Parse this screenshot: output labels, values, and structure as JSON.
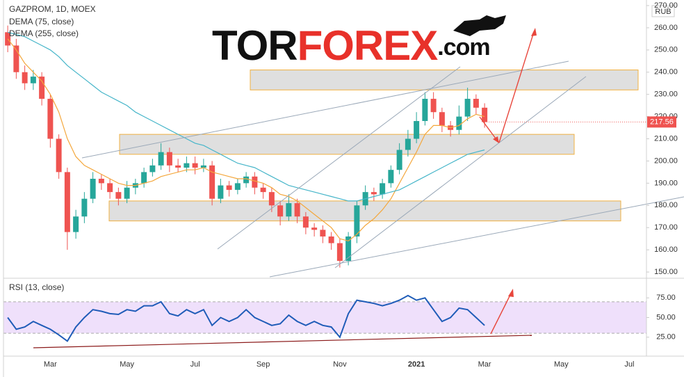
{
  "watermark": [
    "TOR",
    "FOREX",
    ".com"
  ],
  "chart_data": {
    "type": "candlestick",
    "title": "GAZPROM, 1D, MOEX",
    "currency": "RUB",
    "categories": [
      null,
      null,
      null,
      null,
      null,
      "Mar",
      null,
      null,
      null,
      null,
      null,
      null,
      null,
      null,
      "May",
      null,
      null,
      null,
      null,
      null,
      null,
      null,
      "Jul",
      null,
      null,
      null,
      null,
      null,
      null,
      null,
      "Sep",
      null,
      null,
      null,
      null,
      null,
      null,
      null,
      null,
      "Nov",
      null,
      null,
      null,
      null,
      null,
      null,
      null,
      null,
      "2021",
      null,
      null,
      null,
      null,
      null,
      null,
      null,
      "Mar",
      null,
      null,
      null,
      null,
      null,
      null,
      null,
      null,
      "May",
      null,
      null,
      null,
      null,
      null,
      null,
      null,
      "Jul",
      null
    ],
    "open": [
      258,
      252,
      240,
      235,
      238,
      228,
      210,
      195,
      168,
      175,
      183,
      192,
      190,
      186,
      183,
      188,
      190,
      195,
      198,
      204,
      198,
      197,
      199,
      197,
      198,
      183,
      189,
      187,
      190,
      193,
      188,
      186,
      180,
      175,
      181,
      175,
      170,
      169,
      166,
      163,
      155,
      166,
      180,
      186,
      185,
      190,
      196,
      205,
      210,
      218,
      228,
      222,
      216,
      214,
      220,
      228,
      224,
      null,
      null,
      null,
      null,
      null,
      null,
      null,
      null,
      null,
      null,
      null,
      null,
      null,
      null,
      null,
      null,
      null,
      null
    ],
    "high": [
      261,
      255,
      243,
      241,
      240,
      230,
      212,
      197,
      178,
      186,
      195,
      194,
      192,
      188,
      191,
      192,
      197,
      201,
      208,
      206,
      201,
      202,
      202,
      201,
      200,
      192,
      191,
      192,
      195,
      195,
      190,
      188,
      182,
      185,
      183,
      177,
      172,
      171,
      168,
      165,
      168,
      182,
      189,
      188,
      192,
      198,
      208,
      214,
      222,
      231,
      231,
      224,
      218,
      225,
      233,
      230,
      226,
      null,
      null,
      null,
      null,
      null,
      null,
      null,
      null,
      null,
      null,
      null,
      null,
      null,
      null,
      null,
      null,
      null,
      null
    ],
    "low": [
      249,
      237,
      232,
      232,
      225,
      206,
      192,
      160,
      165,
      172,
      181,
      187,
      183,
      180,
      181,
      185,
      188,
      193,
      196,
      195,
      195,
      195,
      194,
      195,
      180,
      181,
      184,
      185,
      188,
      185,
      183,
      177,
      171,
      173,
      172,
      167,
      166,
      163,
      160,
      152,
      153,
      163,
      178,
      182,
      183,
      188,
      194,
      202,
      208,
      216,
      219,
      213,
      211,
      212,
      218,
      221,
      215,
      null,
      null,
      null,
      null,
      null,
      null,
      null,
      null,
      null,
      null,
      null,
      null,
      null,
      null,
      null,
      null,
      null,
      null
    ],
    "close": [
      252,
      240,
      235,
      238,
      228,
      210,
      195,
      168,
      175,
      183,
      192,
      190,
      186,
      183,
      188,
      190,
      195,
      198,
      204,
      198,
      197,
      199,
      197,
      198,
      183,
      189,
      187,
      190,
      193,
      188,
      186,
      180,
      175,
      181,
      175,
      170,
      169,
      166,
      163,
      155,
      166,
      180,
      186,
      185,
      190,
      196,
      205,
      210,
      218,
      228,
      222,
      216,
      214,
      220,
      228,
      224,
      217.56,
      null,
      null,
      null,
      null,
      null,
      null,
      null,
      null,
      null,
      null,
      null,
      null,
      null,
      null,
      null,
      null,
      null,
      null
    ],
    "up_color": "#26a69a",
    "down_color": "#ef5350",
    "series": [
      {
        "name": "DEMA (75, close)",
        "color": "#f4a73c",
        "values": [
          255,
          250,
          244,
          240,
          236,
          230,
          222,
          210,
          202,
          198,
          196,
          194,
          192,
          190,
          189,
          189,
          190,
          191,
          193,
          194,
          195,
          196,
          196,
          197,
          195,
          194,
          193,
          192,
          192,
          191,
          190,
          188,
          185,
          184,
          182,
          179,
          176,
          173,
          170,
          165,
          164,
          167,
          171,
          174,
          178,
          183,
          190,
          197,
          204,
          212,
          216,
          216,
          215,
          216,
          219,
          221,
          220,
          null,
          null,
          null,
          null,
          null,
          null,
          null,
          null,
          null,
          null,
          null,
          null,
          null,
          null,
          null,
          null,
          null,
          null
        ]
      },
      {
        "name": "DEMA (255, close)",
        "color": "#45b5c9",
        "values": [
          258,
          257,
          256,
          254,
          252,
          250,
          247,
          243,
          240,
          237,
          234,
          231,
          229,
          227,
          225,
          222,
          220,
          218,
          216,
          214,
          212,
          210,
          208,
          207,
          205,
          203,
          201,
          199,
          198,
          197,
          195,
          193,
          191,
          189,
          188,
          187,
          186,
          185,
          184,
          183,
          182,
          182,
          183,
          184,
          185,
          186,
          187,
          189,
          191,
          193,
          195,
          197,
          199,
          201,
          203,
          204,
          205,
          null,
          null,
          null,
          null,
          null,
          null,
          null,
          null,
          null,
          null,
          null,
          null,
          null,
          null,
          null,
          null,
          null,
          null
        ]
      }
    ],
    "ylim": [
      147.2,
      272.5
    ],
    "yticks": [
      {
        "value": 150,
        "label": "150.00"
      },
      {
        "value": 160,
        "label": "160.00"
      },
      {
        "value": 170,
        "label": "170.00"
      },
      {
        "value": 180,
        "label": "180.00"
      },
      {
        "value": 190,
        "label": "190.00"
      },
      {
        "value": 200,
        "label": "200.00"
      },
      {
        "value": 210,
        "label": "210.00"
      },
      {
        "value": 220,
        "label": "220.00"
      },
      {
        "value": 230,
        "label": "230.00"
      },
      {
        "value": 240,
        "label": "240.00"
      },
      {
        "value": 250,
        "label": "250.00"
      },
      {
        "value": 260,
        "label": "260.00"
      },
      {
        "value": 270,
        "label": "270.00"
      }
    ],
    "zones": [
      {
        "low": 232,
        "high": 241
      },
      {
        "low": 203,
        "high": 212
      },
      {
        "low": 173,
        "high": 182
      }
    ],
    "rsi": {
      "type": "line",
      "title": "RSI (13, close)",
      "color": "#1f5cb8",
      "values": [
        50,
        35,
        38,
        45,
        40,
        35,
        28,
        20,
        38,
        50,
        60,
        58,
        55,
        54,
        60,
        58,
        65,
        65,
        70,
        55,
        52,
        60,
        55,
        60,
        40,
        50,
        45,
        50,
        60,
        50,
        45,
        40,
        42,
        53,
        45,
        40,
        45,
        40,
        38,
        25,
        55,
        72,
        70,
        68,
        65,
        68,
        72,
        78,
        72,
        75,
        60,
        45,
        50,
        62,
        60,
        50,
        40,
        null,
        null,
        null,
        null,
        null,
        null,
        null,
        null,
        null,
        null,
        null,
        null,
        null,
        null,
        null,
        null,
        null,
        null
      ],
      "ylim": [
        0,
        100
      ],
      "yticks": [
        {
          "value": 25,
          "label": "25.00"
        },
        {
          "value": 50,
          "label": "50.00"
        },
        {
          "value": 75,
          "label": "75.00"
        }
      ],
      "band": [
        30,
        70
      ]
    }
  }
}
